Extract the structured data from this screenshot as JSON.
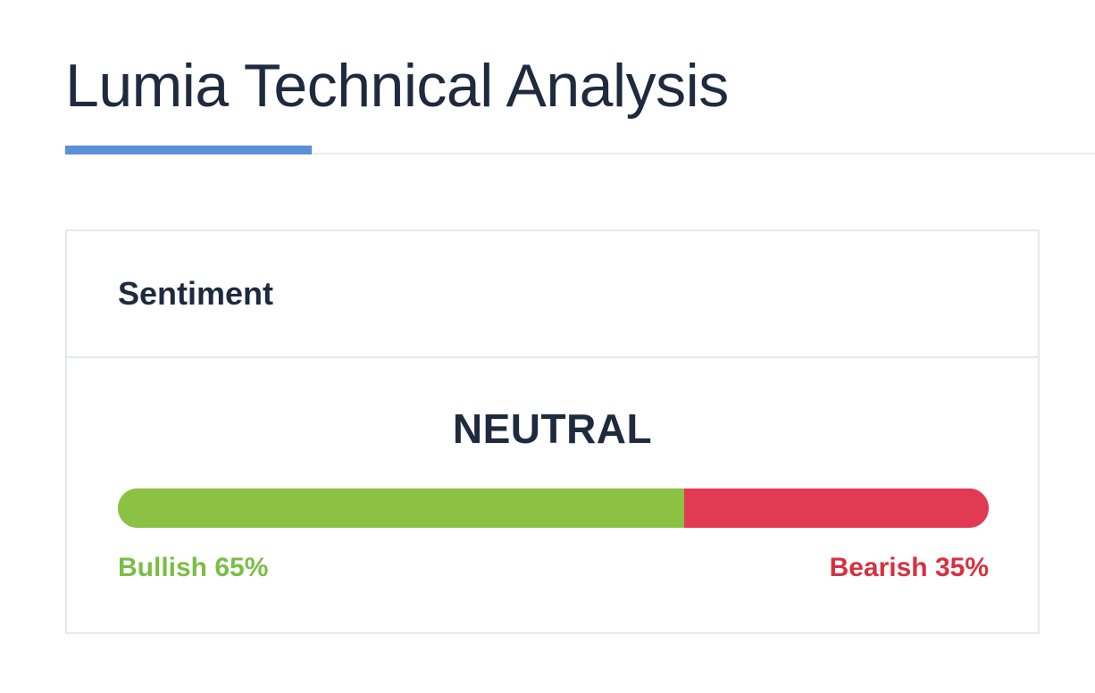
{
  "page": {
    "title": "Lumia Technical Analysis"
  },
  "sentiment_card": {
    "header": "Sentiment",
    "verdict": "NEUTRAL",
    "bullish": {
      "label": "Bullish 65%",
      "percent": 65,
      "color": "#8bc243"
    },
    "bearish": {
      "label": "Bearish 35%",
      "percent": 35,
      "color": "#e23a52"
    }
  },
  "colors": {
    "title_text": "#1e2a3e",
    "accent": "#5b8fd9",
    "bullish_text": "#7bbd45",
    "bearish_text": "#d8303f"
  }
}
